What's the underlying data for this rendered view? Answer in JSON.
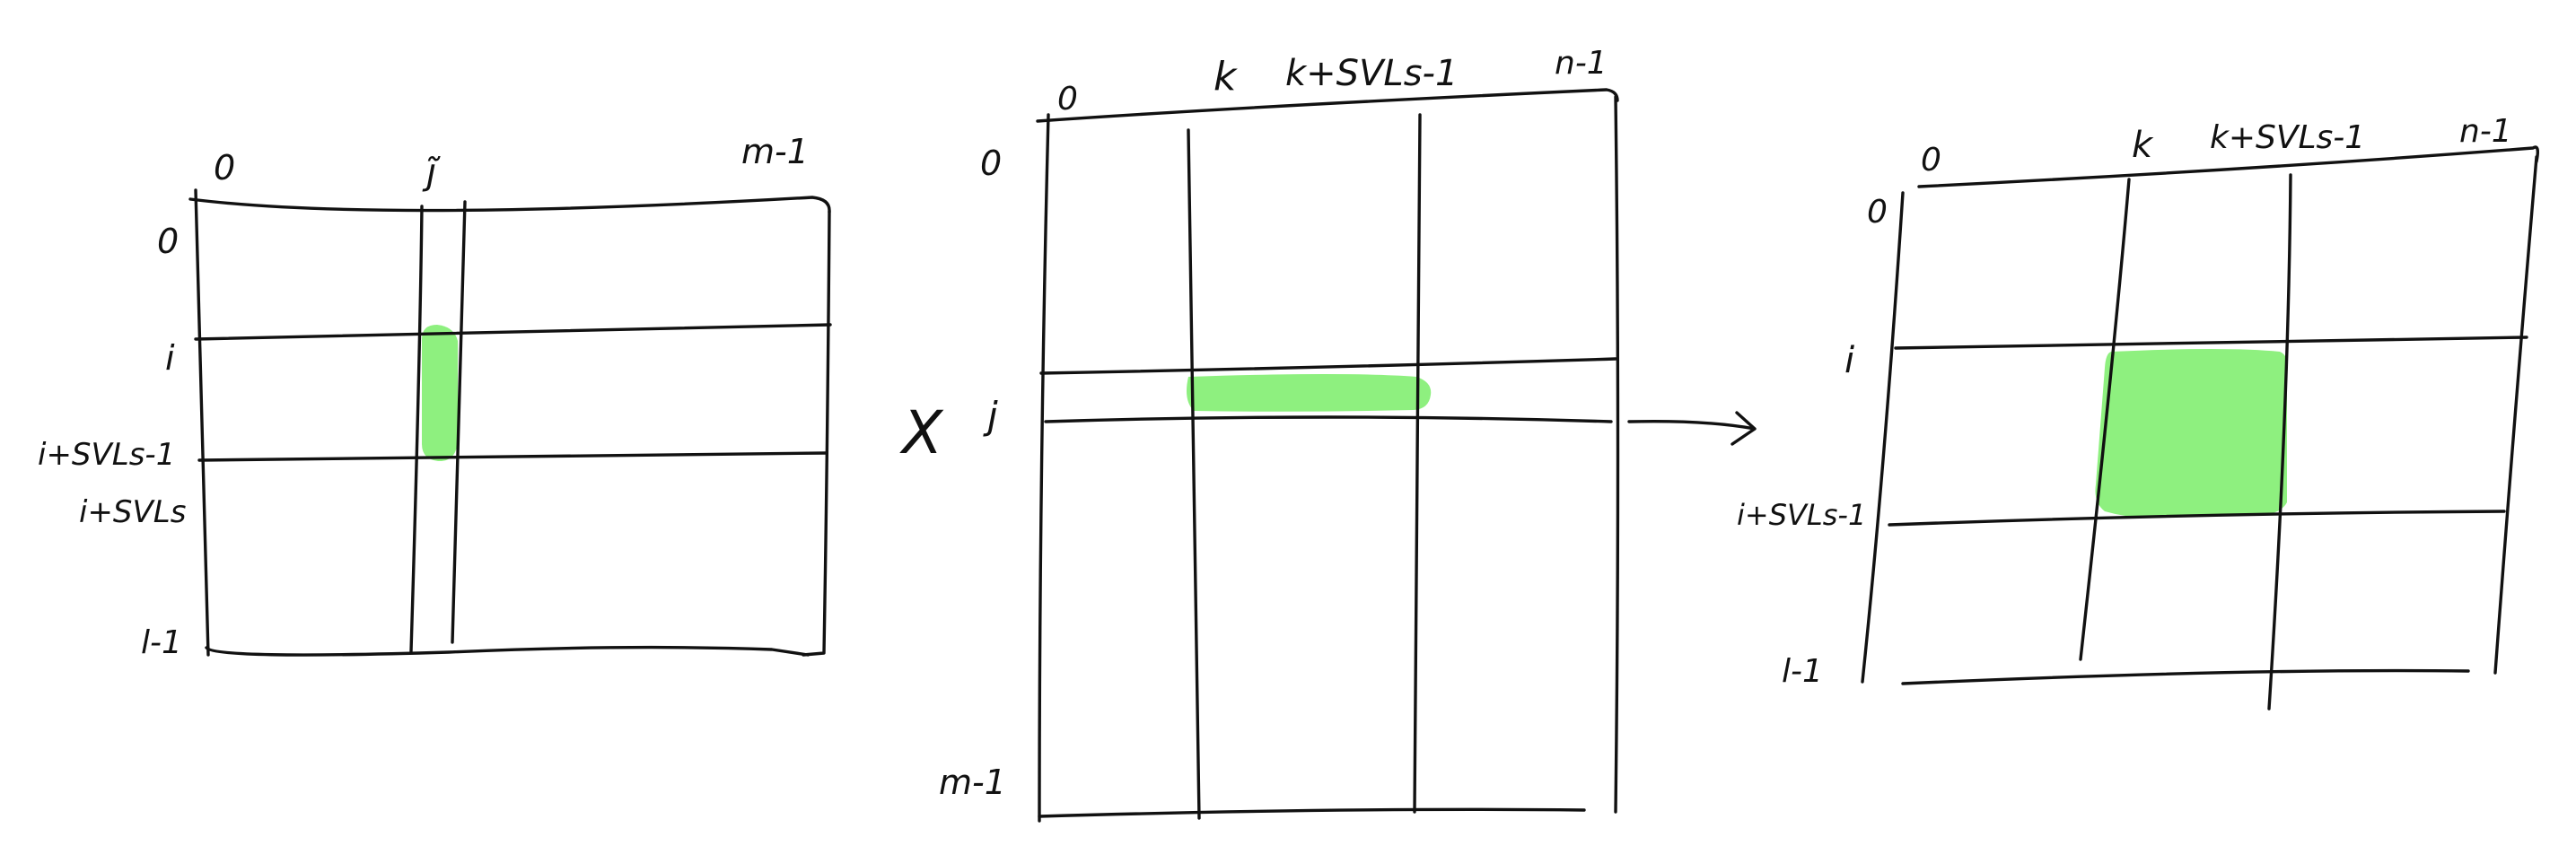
{
  "colors": {
    "ink": "#111111",
    "highlight": "#8ef07f",
    "background": "#ffffff"
  },
  "matrix_a": {
    "col_labels": {
      "start": "0",
      "j": "j̃",
      "end": "m-1"
    },
    "row_labels": {
      "start": "0",
      "i": "i",
      "i_svl_minus1": "i+SVLs-1",
      "i_svl": "i+SVLs",
      "end": "l-1"
    }
  },
  "operator_times": "X",
  "matrix_b": {
    "col_labels": {
      "start": "0",
      "k": "k",
      "k_svl": "k+SVLs-1",
      "end": "n-1"
    },
    "row_labels": {
      "start": "0",
      "j": "j",
      "end": "m-1"
    }
  },
  "matrix_c": {
    "col_labels": {
      "start": "0",
      "k": "k",
      "k_svl": "k+SVLs-1",
      "end": "n-1"
    },
    "row_labels": {
      "start": "0",
      "i": "i",
      "i_svl": "i+SVLs-1",
      "end": "l-1"
    }
  }
}
